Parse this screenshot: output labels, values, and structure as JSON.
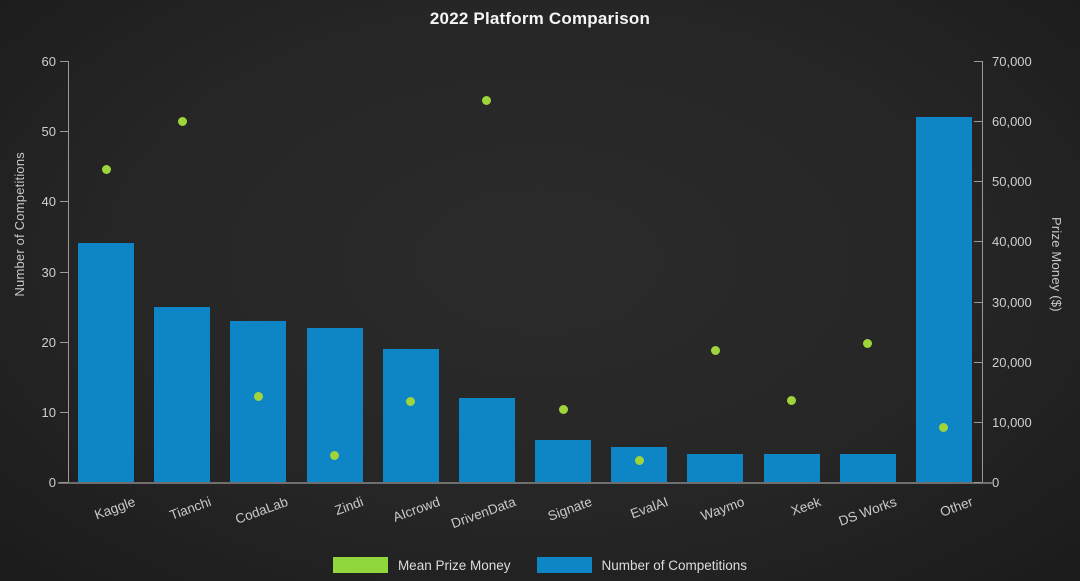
{
  "title": "2022 Platform Comparison",
  "colors": {
    "background": "#262626",
    "bar": "#0e86c6",
    "marker": "#9fd53b",
    "legend_green": "#90d63d",
    "title_text": "#f5f5f5",
    "tick_text": "#cfcfcf",
    "axis_line": "#9a9a9a"
  },
  "legend": {
    "items": [
      {
        "label": "Mean Prize Money",
        "color": "#90d63d"
      },
      {
        "label": "Number of Competitions",
        "color": "#0e86c6"
      }
    ]
  },
  "chart_data": {
    "type": "bar+scatter",
    "title": "2022 Platform Comparison",
    "categories": [
      "Kaggle",
      "Tianchi",
      "CodaLab",
      "Zindi",
      "AIcrowd",
      "DrivenData",
      "Signate",
      "EvalAI",
      "Waymo",
      "Xeek",
      "DS Works",
      "Other"
    ],
    "series": [
      {
        "name": "Number of Competitions",
        "type": "bar",
        "axis": "left",
        "color": "#0e86c6",
        "values": [
          34,
          25,
          23,
          22,
          19,
          12,
          6,
          5,
          4,
          4,
          4,
          52
        ]
      },
      {
        "name": "Mean Prize Money",
        "type": "scatter",
        "axis": "right",
        "color": "#9fd53b",
        "values": [
          51900,
          60000,
          14200,
          4400,
          13400,
          63500,
          12100,
          3600,
          21900,
          13600,
          23100,
          9100
        ]
      }
    ],
    "left_axis": {
      "label": "Number of Competitions",
      "min": 0,
      "max": 60,
      "step": 10,
      "tick_labels": [
        "0",
        "10",
        "20",
        "30",
        "40",
        "50",
        "60"
      ]
    },
    "right_axis": {
      "label": "Prize Money ($)",
      "min": 0,
      "max": 70000,
      "step": 10000,
      "tick_labels": [
        "0",
        "10,000",
        "20,000",
        "30,000",
        "40,000",
        "50,000",
        "60,000",
        "70,000"
      ]
    },
    "grid": false,
    "x_tick_rotation_deg": -20,
    "legend_position": "bottom-center"
  }
}
